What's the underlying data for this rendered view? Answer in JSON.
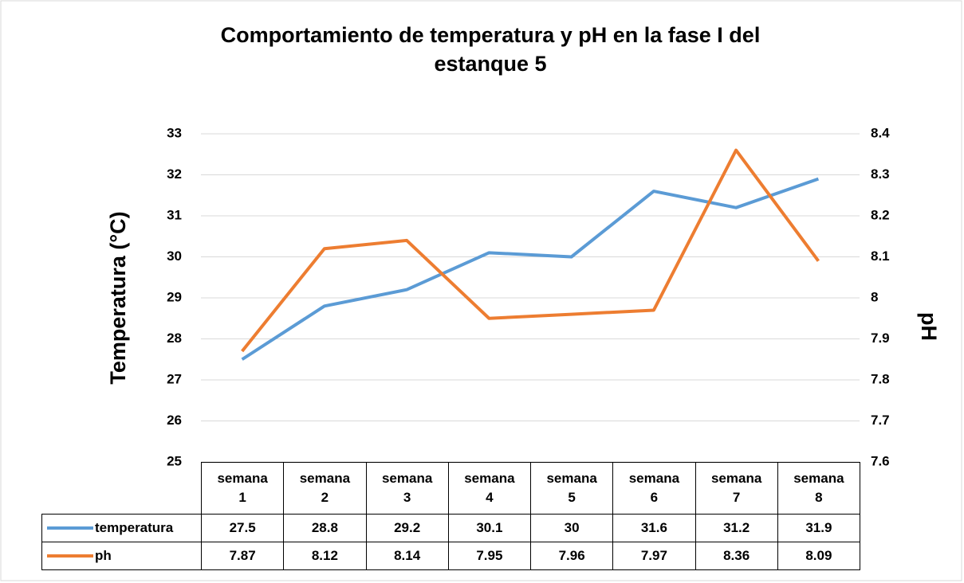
{
  "chart_data": {
    "type": "line",
    "title": "Comportamiento de temperatura y pH en la fase I del estanque 5",
    "ylabel": "Temperatura (°C)",
    "y2label": "pH",
    "categories": [
      "semana 1",
      "semana 2",
      "semana 3",
      "semana 4",
      "semana 5",
      "semana 6",
      "semana 7",
      "semana 8"
    ],
    "series": [
      {
        "name": "temperatura",
        "color": "#5b9bd5",
        "values": [
          27.5,
          28.8,
          29.2,
          30.1,
          30,
          31.6,
          31.2,
          31.9
        ]
      },
      {
        "name": "ph",
        "color": "#ed7d31",
        "axis": "y2",
        "values": [
          7.87,
          8.12,
          8.14,
          7.95,
          7.96,
          7.97,
          8.36,
          8.09
        ]
      }
    ],
    "ylim": [
      25,
      33
    ],
    "yticks": [
      25,
      26,
      27,
      28,
      29,
      30,
      31,
      32,
      33
    ],
    "y2lim": [
      7.6,
      8.4
    ],
    "y2ticks": [
      7.6,
      7.7,
      7.8,
      7.9,
      8,
      8.1,
      8.2,
      8.3,
      8.4
    ],
    "grid": true,
    "data_table": true
  }
}
